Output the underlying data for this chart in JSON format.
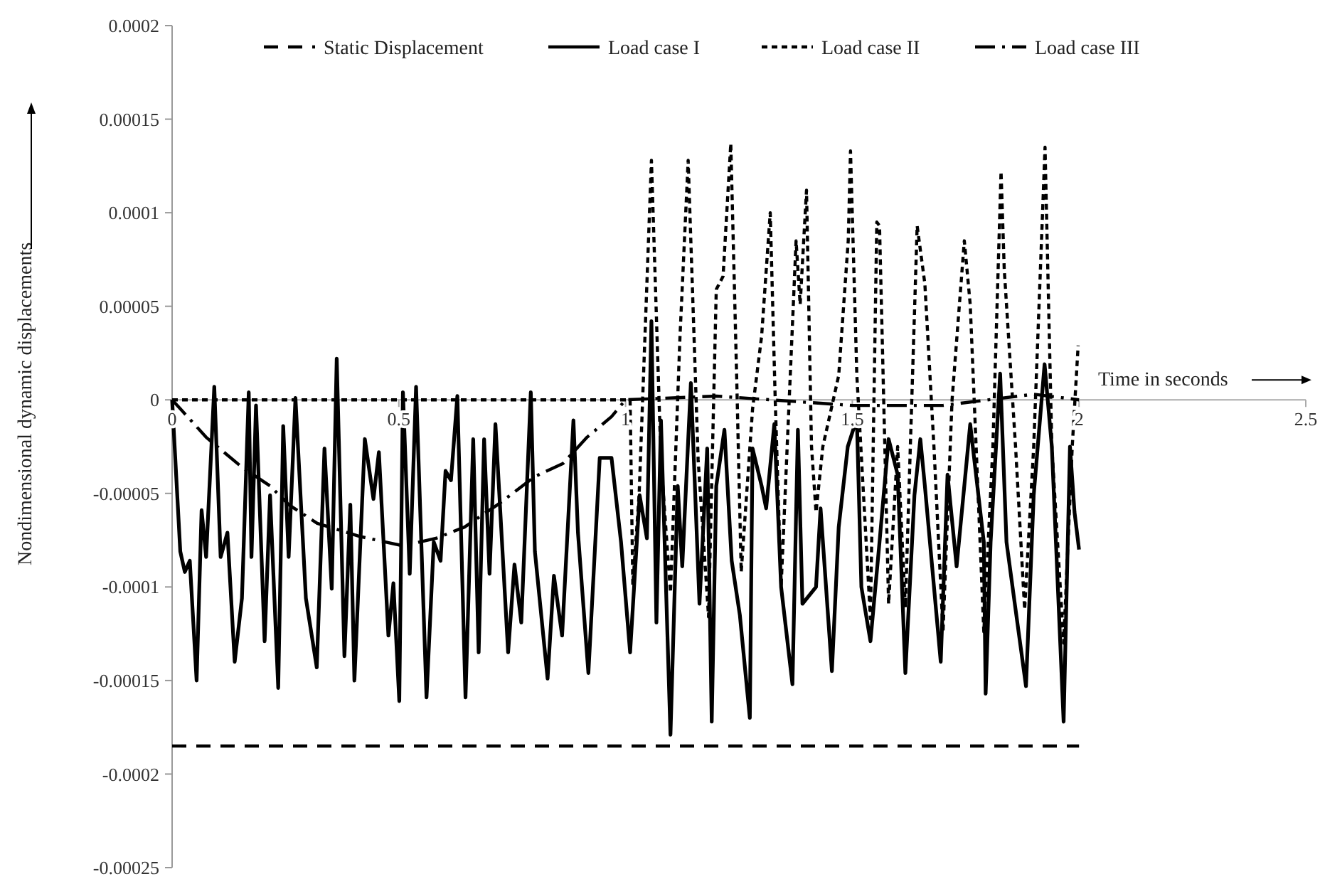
{
  "chart_data": {
    "type": "line",
    "xlabel": "Time in seconds",
    "ylabel": "Nondimensional dynamic displacements",
    "xlim": [
      0,
      2.5
    ],
    "xticks": [
      0,
      0.5,
      1,
      1.5,
      2,
      2.5
    ],
    "ylim": [
      -0.00025,
      0.0002
    ],
    "yticks": [
      -0.00025,
      -0.0002,
      -0.00015,
      -0.0001,
      {
        "value": -5e-05,
        "label": "-0.00005"
      },
      0,
      {
        "value": 5e-05,
        "label": "0.00005"
      },
      0.0001,
      0.00015,
      0.0002
    ],
    "grid": false,
    "legend": "top",
    "marker": "none",
    "series": [
      {
        "name": "Static Displacement",
        "color": "#000000",
        "line_style": "dashed",
        "x": [
          0,
          2
        ],
        "values": [
          -0.000185,
          -0.000185
        ]
      },
      {
        "name": "Load case I",
        "color": "#000000",
        "line_style": "solid",
        "x": [
          0,
          0.018,
          0.028,
          0.039,
          0.054,
          0.065,
          0.075,
          0.093,
          0.107,
          0.122,
          0.138,
          0.154,
          0.169,
          0.175,
          0.185,
          0.204,
          0.216,
          0.234,
          0.245,
          0.257,
          0.272,
          0.295,
          0.319,
          0.336,
          0.352,
          0.363,
          0.38,
          0.393,
          0.402,
          0.425,
          0.444,
          0.456,
          0.477,
          0.488,
          0.501,
          0.509,
          0.524,
          0.538,
          0.561,
          0.577,
          0.592,
          0.603,
          0.615,
          0.629,
          0.647,
          0.664,
          0.676,
          0.688,
          0.7,
          0.713,
          0.741,
          0.755,
          0.77,
          0.791,
          0.8,
          0.828,
          0.842,
          0.86,
          0.885,
          0.895,
          0.918,
          0.943,
          0.969,
          0.99,
          1.01,
          1.031,
          1.047,
          1.057,
          1.068,
          1.078,
          1.099,
          1.115,
          1.125,
          1.144,
          1.163,
          1.18,
          1.19,
          1.2,
          1.218,
          1.234,
          1.252,
          1.274,
          1.28,
          1.3,
          1.31,
          1.328,
          1.343,
          1.368,
          1.38,
          1.39,
          1.42,
          1.43,
          1.455,
          1.47,
          1.49,
          1.51,
          1.52,
          1.54,
          1.56,
          1.58,
          1.6,
          1.617,
          1.637,
          1.65,
          1.66,
          1.695,
          1.71,
          1.73,
          1.76,
          1.79,
          1.794,
          1.805,
          1.826,
          1.84,
          1.86,
          1.883,
          1.9,
          1.924,
          1.94,
          1.966,
          1.98,
          1.99,
          2
        ],
        "values": [
          0,
          -8.1e-05,
          -9.2e-05,
          -8.6e-05,
          -0.00015,
          -5.9e-05,
          -8.4e-05,
          7e-06,
          -8.4e-05,
          -7.1e-05,
          -0.00014,
          -0.000106,
          4e-06,
          -8.4e-05,
          -3e-06,
          -0.000129,
          -5.1e-05,
          -0.000154,
          -1.4e-05,
          -8.4e-05,
          1e-06,
          -0.000106,
          -0.000143,
          -2.6e-05,
          -0.000101,
          2.2e-05,
          -0.000137,
          -5.6e-05,
          -0.00015,
          -2.1e-05,
          -5.3e-05,
          -2.8e-05,
          -0.000126,
          -9.8e-05,
          -0.000161,
          4e-06,
          -9.3e-05,
          7e-06,
          -0.000159,
          -7.6e-05,
          -8.6e-05,
          -3.8e-05,
          -4.3e-05,
          2e-06,
          -0.000159,
          -2.1e-05,
          -0.000135,
          -2.1e-05,
          -9.3e-05,
          -1.3e-05,
          -0.000135,
          -8.8e-05,
          -0.000119,
          4e-06,
          -8.1e-05,
          -0.000149,
          -9.4e-05,
          -0.000126,
          -1.1e-05,
          -7.1e-05,
          -0.000146,
          -3.1e-05,
          -3.1e-05,
          -7.6e-05,
          -0.000135,
          -5.1e-05,
          -7.4e-05,
          4.2e-05,
          -0.000119,
          -1.1e-05,
          -0.000179,
          -4.6e-05,
          -8.9e-05,
          9e-06,
          -0.000109,
          -2.6e-05,
          -0.000172,
          -4.6e-05,
          -1.6e-05,
          -8.6e-05,
          -0.000115,
          -0.00017,
          -2.6e-05,
          -4.6e-05,
          -5.8e-05,
          -1.3e-05,
          -0.0001,
          -0.000152,
          -1.6e-05,
          -0.000109,
          -0.0001,
          -5.8e-05,
          -0.000145,
          -6.8e-05,
          -2.5e-05,
          -1e-05,
          -0.0001,
          -0.000129,
          -7.6e-05,
          -2.1e-05,
          -4e-05,
          -0.000146,
          -5.1e-05,
          -2.1e-05,
          -4.6e-05,
          -0.00014,
          -4e-05,
          -8.9e-05,
          -1.3e-05,
          -7.6e-05,
          -0.000157,
          -7.6e-05,
          1.4e-05,
          -7.6e-05,
          -0.000112,
          -0.000153,
          -5.1e-05,
          1.9e-05,
          -2.5e-05,
          -0.000172,
          -2.5e-05,
          -6e-05,
          -8e-05
        ]
      },
      {
        "name": "Load case II",
        "color": "#000000",
        "line_style": "dotted",
        "x": [
          0,
          1.01,
          1.016,
          1.03,
          1.057,
          1.078,
          1.099,
          1.12,
          1.138,
          1.16,
          1.183,
          1.2,
          1.215,
          1.232,
          1.245,
          1.255,
          1.28,
          1.3,
          1.319,
          1.33,
          1.343,
          1.376,
          1.385,
          1.399,
          1.41,
          1.42,
          1.435,
          1.47,
          1.491,
          1.496,
          1.51,
          1.54,
          1.554,
          1.56,
          1.58,
          1.6,
          1.617,
          1.643,
          1.66,
          1.68,
          1.7,
          1.72,
          1.747,
          1.76,
          1.79,
          1.81,
          1.828,
          1.835,
          1.86,
          1.88,
          1.9,
          1.925,
          1.94,
          1.966,
          1.985,
          1.998
        ],
        "values": [
          0,
          0,
          -9.9e-05,
          -5e-05,
          0.000128,
          -3.2e-05,
          -0.000103,
          3.4e-05,
          0.000128,
          -3.2e-05,
          -0.000116,
          5.9e-05,
          6.6e-05,
          0.000137,
          1.2e-05,
          -9.2e-05,
          -5e-06,
          3.4e-05,
          0.0001,
          0,
          -0.0001,
          8.5e-05,
          5.1e-05,
          0.000112,
          -2.5e-05,
          -6e-05,
          -2.5e-05,
          1.3e-05,
          8.5e-05,
          0.000133,
          1.3e-05,
          -0.000117,
          9.5e-05,
          9.3e-05,
          -0.000109,
          -2.5e-05,
          -0.000111,
          9.3e-05,
          6.2e-05,
          -2.5e-05,
          -0.000124,
          0,
          8.5e-05,
          5.1e-05,
          -0.000124,
          -2.5e-05,
          0.000122,
          7e-05,
          -2.5e-05,
          -0.000112,
          -2.5e-05,
          0.000135,
          -2.5e-05,
          -0.00013,
          -2.5e-05,
          2.9e-05
        ]
      },
      {
        "name": "Load case III",
        "color": "#000000",
        "line_style": "dashdot",
        "x": [
          0,
          0.049,
          0.075,
          0.154,
          0.216,
          0.257,
          0.32,
          0.414,
          0.509,
          0.582,
          0.645,
          0.718,
          0.8,
          0.862,
          0.915,
          0.969,
          1,
          1.2,
          1.5,
          1.7,
          1.9,
          2
        ],
        "values": [
          0,
          -1.3e-05,
          -2e-05,
          -3.6e-05,
          -4.6e-05,
          -5.6e-05,
          -6.6e-05,
          -7.3e-05,
          -7.8e-05,
          -7.4e-05,
          -6.8e-05,
          -5.6e-05,
          -4.1e-05,
          -3.4e-05,
          -2e-05,
          -9e-06,
          0,
          2e-06,
          -3e-06,
          -3e-06,
          3e-06,
          0
        ]
      }
    ]
  }
}
